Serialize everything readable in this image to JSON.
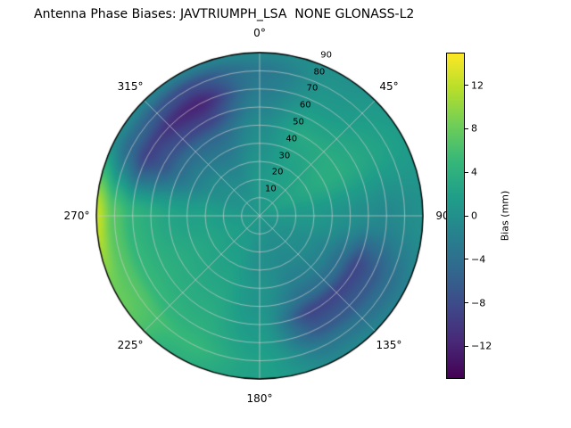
{
  "title": "Antenna Phase Biases: JAVTRIUMPH_LSA  NONE GLONASS-L2",
  "chart_data": {
    "type": "heatmap",
    "projection": "polar",
    "title": "Antenna Phase Biases: JAVTRIUMPH_LSA  NONE GLONASS-L2",
    "angle_labels": [
      {
        "angle": 0,
        "label": "0°"
      },
      {
        "angle": 45,
        "label": "45°"
      },
      {
        "angle": 90,
        "label": "90"
      },
      {
        "angle": 135,
        "label": "135°"
      },
      {
        "angle": 180,
        "label": "180°"
      },
      {
        "angle": 225,
        "label": "225°"
      },
      {
        "angle": 270,
        "label": "270°"
      },
      {
        "angle": 315,
        "label": "315°"
      }
    ],
    "radial_ticks": [
      {
        "value": 10,
        "label": "10"
      },
      {
        "value": 20,
        "label": "20"
      },
      {
        "value": 30,
        "label": "30"
      },
      {
        "value": 40,
        "label": "40"
      },
      {
        "value": 50,
        "label": "50"
      },
      {
        "value": 60,
        "label": "60"
      },
      {
        "value": 70,
        "label": "70"
      },
      {
        "value": 80,
        "label": "80"
      },
      {
        "value": 90,
        "label": "90"
      }
    ],
    "radial_axis_angle_deg": 22.5,
    "azimuths_deg": [
      0,
      30,
      60,
      90,
      120,
      150,
      180,
      210,
      240,
      270,
      300,
      330
    ],
    "zeniths_deg": [
      0,
      10,
      20,
      30,
      40,
      50,
      60,
      70,
      80,
      90
    ],
    "values_mm": [
      [
        1,
        1,
        1,
        1,
        1,
        1,
        1,
        1,
        1,
        1,
        1,
        1
      ],
      [
        1,
        1.5,
        2,
        1,
        0.5,
        0,
        0.5,
        1,
        1.5,
        1,
        0.5,
        0.5
      ],
      [
        1,
        2,
        2.5,
        1,
        0,
        -0.5,
        0,
        1.5,
        2,
        1.5,
        0,
        -0.5
      ],
      [
        0.5,
        2,
        3,
        1,
        -0.5,
        -1,
        0,
        2,
        2.5,
        2,
        -0.5,
        -1.5
      ],
      [
        0,
        2.5,
        3.5,
        0.5,
        -1.5,
        -2,
        0.5,
        2.5,
        3,
        2,
        -2,
        -3
      ],
      [
        -0.5,
        3,
        3.5,
        0,
        -4,
        -4,
        0.5,
        3,
        3.5,
        2.5,
        -4,
        -5
      ],
      [
        -1.5,
        2,
        3,
        -0.5,
        -8.5,
        -8.5,
        1,
        3.5,
        4,
        3.5,
        -7,
        -9
      ],
      [
        -2.5,
        1,
        2.5,
        -1,
        -6.5,
        -6.5,
        1.5,
        4,
        5,
        4.5,
        -9,
        -12
      ],
      [
        -3,
        0.5,
        2,
        -0.5,
        -4,
        -3,
        2,
        5,
        7,
        7,
        -5,
        -8
      ],
      [
        -1,
        0,
        1.5,
        0,
        -2,
        -1,
        2,
        4,
        8,
        12.5,
        -1,
        -2
      ]
    ],
    "colormap": {
      "name": "viridis",
      "anchors": [
        "#440154",
        "#482878",
        "#3e4989",
        "#31688e",
        "#26828e",
        "#1f9e89",
        "#35b779",
        "#6ece58",
        "#b5de2b",
        "#fde725"
      ]
    },
    "colorbar": {
      "label": "Bias (mm)",
      "vmin": -15,
      "vmax": 15,
      "ticks": [
        {
          "value": 12,
          "label": "12"
        },
        {
          "value": 8,
          "label": "8"
        },
        {
          "value": 4,
          "label": "4"
        },
        {
          "value": 0,
          "label": "0"
        },
        {
          "value": -4,
          "label": "−4"
        },
        {
          "value": -8,
          "label": "−8"
        },
        {
          "value": -12,
          "label": "−12"
        }
      ]
    },
    "style": {
      "grid_color": "#cccccc",
      "edge_color": "#000000",
      "background": "#ffffff",
      "text_color": "#000000"
    }
  }
}
